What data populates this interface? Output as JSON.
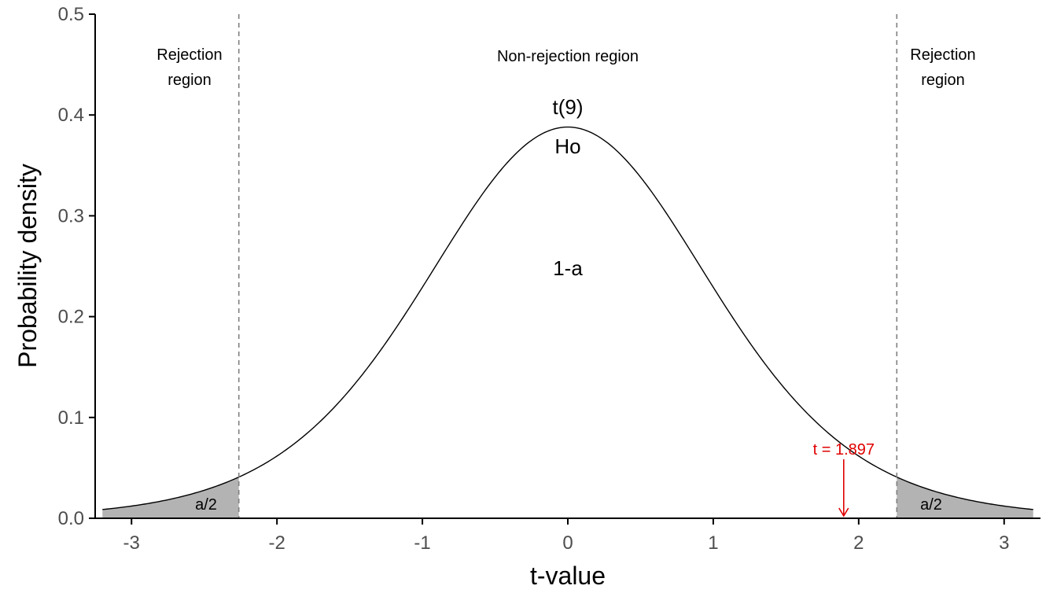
{
  "chart_data": {
    "type": "area",
    "distribution": "t",
    "df": 9,
    "xlabel": "t-value",
    "ylabel": "Probability density",
    "xlim": [
      -3.25,
      3.25
    ],
    "ylim": [
      0,
      0.5
    ],
    "x_ticks": [
      -3,
      -2,
      -1,
      0,
      1,
      2,
      3
    ],
    "x_tick_labels": [
      "-3",
      "-2",
      "-1",
      "0",
      "1",
      "2",
      "3"
    ],
    "y_ticks": [
      0,
      0.1,
      0.2,
      0.3,
      0.4,
      0.5
    ],
    "y_tick_labels": [
      "0.0",
      "0.1",
      "0.2",
      "0.3",
      "0.4",
      "0.5"
    ],
    "critical_values": [
      -2.262,
      2.262
    ],
    "x_range": [
      -3.2,
      3.2
    ],
    "observed_t": 1.897,
    "observed_label": "t = 1.897",
    "annotations": {
      "rejection_left": [
        "Rejection",
        "region"
      ],
      "rejection_right": [
        "Rejection",
        "region"
      ],
      "non_rejection": "Non-rejection region",
      "distribution": "t(9)",
      "hypothesis": "Ho",
      "center": "1-a",
      "tail_left": "a/2",
      "tail_right": "a/2"
    },
    "grid": false,
    "colors": {
      "curve": "#000000",
      "tail_fill": "#b3b3b3",
      "critical_line": "#808080",
      "observed": "#e00000",
      "axis": "#000000"
    }
  }
}
